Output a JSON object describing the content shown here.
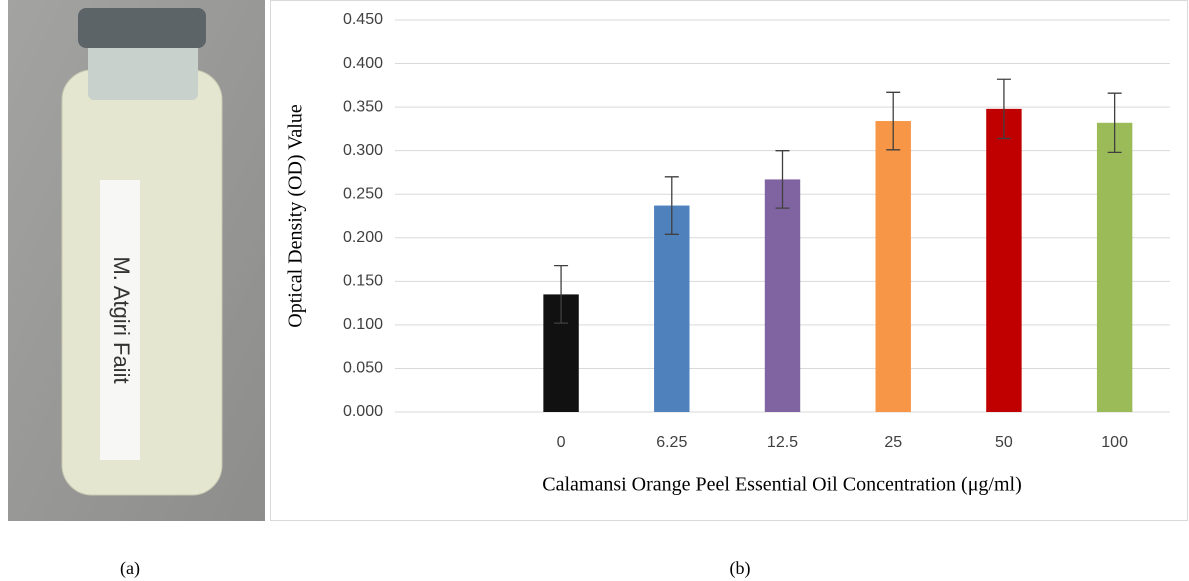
{
  "photo": {
    "label": "M. Atgiri Faiit"
  },
  "captions": [
    "(a)",
    "(b)"
  ],
  "chart_data": {
    "type": "bar",
    "y_label": "Optical Density (OD) Value",
    "x_label": "Calamansi Orange Peel Essential Oil Concentration (μg/ml)",
    "categories": [
      null,
      "0",
      "6.25",
      "12.5",
      "25",
      "50",
      "100"
    ],
    "values": [
      null,
      0.135,
      0.237,
      0.267,
      0.334,
      0.348,
      0.332
    ],
    "errors": [
      null,
      0.033,
      0.033,
      0.033,
      0.033,
      0.034,
      0.034
    ],
    "colors": [
      null,
      "#111111",
      "#4f81bd",
      "#8064a2",
      "#f79646",
      "#c00000",
      "#9bbb59"
    ],
    "ylim": [
      0,
      0.45
    ],
    "yticks": [
      {
        "value": 0,
        "label": "0.000"
      },
      {
        "value": 0.05,
        "label": "0.050"
      },
      {
        "value": 0.1,
        "label": "0.100"
      },
      {
        "value": 0.15,
        "label": "0.150"
      },
      {
        "value": 0.2,
        "label": "0.200"
      },
      {
        "value": 0.25,
        "label": "0.250"
      },
      {
        "value": 0.3,
        "label": "0.300"
      },
      {
        "value": 0.35,
        "label": "0.350"
      },
      {
        "value": 0.4,
        "label": "0.400"
      },
      {
        "value": 0.45,
        "label": "0.450"
      }
    ],
    "grid": true
  }
}
